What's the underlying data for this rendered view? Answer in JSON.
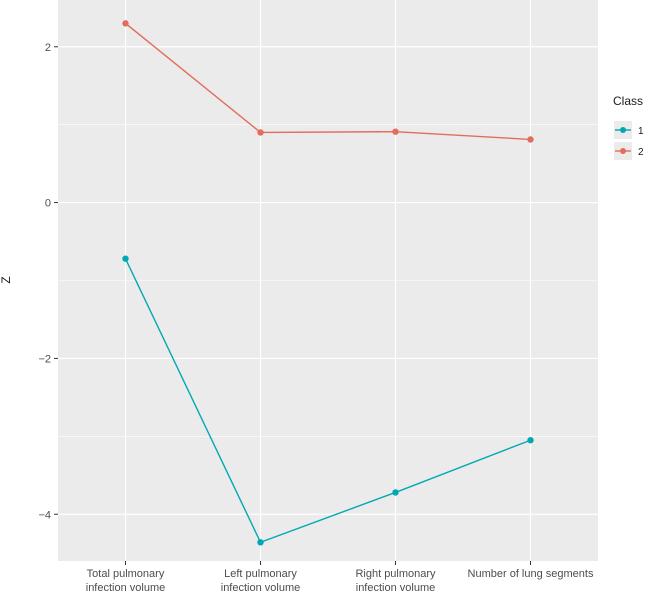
{
  "chart_data": {
    "type": "line",
    "title": "",
    "xlabel": "",
    "ylabel": "Z",
    "categories": [
      [
        "Total pulmonary",
        "infection volume"
      ],
      [
        "Left pulmonary",
        "infection volume"
      ],
      [
        "Right pulmonary",
        "infection volume"
      ],
      [
        "Number of lung segments"
      ]
    ],
    "y_ticks": [
      2,
      0,
      -2,
      -4
    ],
    "y_tick_labels": [
      "2",
      "0",
      "−2",
      "−4"
    ],
    "ylim": [
      -4.6,
      2.6
    ],
    "grid": true,
    "legend": {
      "title": "Class",
      "placement": "right"
    },
    "series": [
      {
        "name": "1",
        "color": "#00A9B2",
        "values": [
          -0.72,
          -4.36,
          -3.72,
          -3.05
        ]
      },
      {
        "name": "2",
        "color": "#E26D5C",
        "values": [
          2.3,
          0.9,
          0.91,
          0.81
        ]
      }
    ],
    "panel_background": "#EBEBEB",
    "grid_color": "#FFFFFF"
  }
}
